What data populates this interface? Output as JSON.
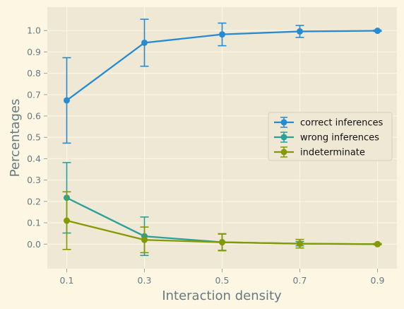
{
  "chart_data": {
    "type": "line",
    "xlabel": "Interaction density",
    "ylabel": "Percentages",
    "x": [
      0.1,
      0.3,
      0.5,
      0.7,
      0.9
    ],
    "x_ticks": [
      "0.1",
      "0.3",
      "0.5",
      "0.7",
      "0.9"
    ],
    "y_ticks": [
      "0.0",
      "0.1",
      "0.2",
      "0.3",
      "0.4",
      "0.5",
      "0.6",
      "0.7",
      "0.8",
      "0.9",
      "1.0"
    ],
    "xlim": [
      0.05,
      0.95
    ],
    "ylim": [
      -0.115,
      1.11
    ],
    "grid": true,
    "legend_position": "center-right",
    "series": [
      {
        "name": "correct inferences",
        "color": "#268bd2",
        "values": [
          0.673,
          0.943,
          0.982,
          0.996,
          0.999
        ],
        "errors": [
          0.2,
          0.11,
          0.053,
          0.028,
          0.003
        ]
      },
      {
        "name": "wrong inferences",
        "color": "#2aa198",
        "values": [
          0.217,
          0.037,
          0.009,
          0.002,
          0.0
        ],
        "errors": [
          0.165,
          0.09,
          0.038,
          0.01,
          0.002
        ]
      },
      {
        "name": "indeterminate",
        "color": "#859900",
        "values": [
          0.11,
          0.02,
          0.009,
          0.002,
          0.0
        ],
        "errors": [
          0.135,
          0.06,
          0.04,
          0.02,
          0.003
        ]
      }
    ]
  }
}
